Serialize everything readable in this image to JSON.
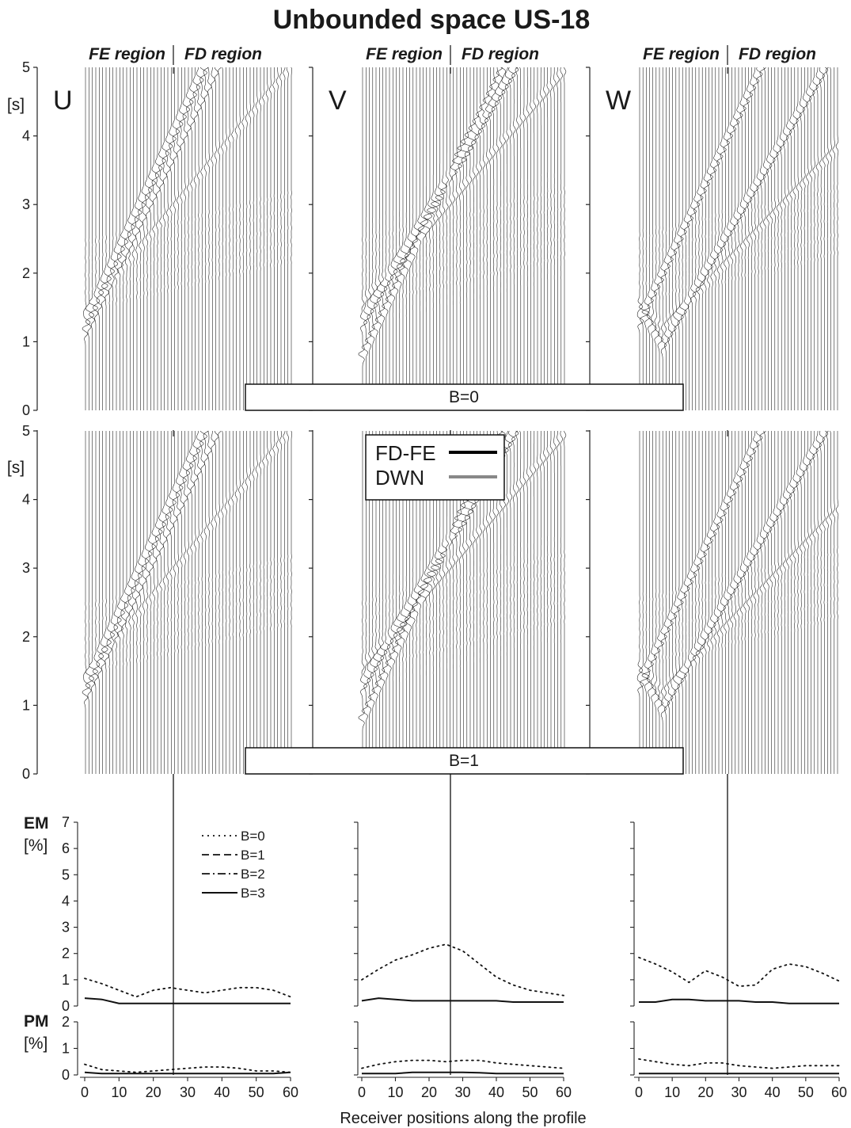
{
  "chart_data": {
    "type": "line",
    "title": "Unbounded space  US-18",
    "region_labels": {
      "fe": "FE region",
      "fd": "FD region"
    },
    "components": [
      "U",
      "V",
      "W"
    ],
    "seismogram_rows": [
      {
        "label": "B=0",
        "yunit": "[s]",
        "yticks": [
          "0",
          "1",
          "2",
          "3",
          "4",
          "5"
        ],
        "ylim": [
          0,
          5
        ]
      },
      {
        "label": "B=1",
        "yunit": "[s]",
        "yticks": [
          "0",
          "1",
          "2",
          "3",
          "4",
          "5"
        ],
        "ylim": [
          0,
          5
        ]
      }
    ],
    "seismogram_legend": [
      {
        "name": "FD-FE",
        "color": "#000000"
      },
      {
        "name": "DWN",
        "color": "#888888"
      }
    ],
    "receiver_count": 61,
    "fe_fd_boundary_receiver": 27,
    "misfit_legend": [
      {
        "name": "B=0",
        "dash": "dotted"
      },
      {
        "name": "B=1",
        "dash": "dashed"
      },
      {
        "name": "B=2",
        "dash": "dashdot"
      },
      {
        "name": "B=3",
        "dash": "solid"
      }
    ],
    "em": {
      "label": "EM",
      "unit": "[%]",
      "ylim": [
        0,
        7
      ],
      "yticks": [
        "0",
        "1",
        "2",
        "3",
        "4",
        "5",
        "6",
        "7"
      ],
      "x": [
        0,
        5,
        10,
        15,
        20,
        25,
        30,
        35,
        40,
        45,
        50,
        55,
        60
      ],
      "series": [
        {
          "name": "B=0",
          "dash": "dotted",
          "component": "U",
          "values": [
            1.05,
            0.85,
            0.6,
            0.35,
            0.6,
            0.7,
            0.6,
            0.5,
            0.6,
            0.7,
            0.7,
            0.6,
            0.35
          ]
        },
        {
          "name": "B=3",
          "dash": "solid",
          "component": "U",
          "values": [
            0.3,
            0.25,
            0.1,
            0.1,
            0.1,
            0.1,
            0.1,
            0.1,
            0.1,
            0.1,
            0.1,
            0.1,
            0.1
          ]
        },
        {
          "name": "B=0",
          "dash": "dotted",
          "component": "V",
          "values": [
            1.0,
            1.4,
            1.75,
            1.95,
            2.2,
            2.35,
            2.1,
            1.6,
            1.1,
            0.8,
            0.6,
            0.5,
            0.4
          ]
        },
        {
          "name": "B=3",
          "dash": "solid",
          "component": "V",
          "values": [
            0.2,
            0.3,
            0.25,
            0.2,
            0.2,
            0.2,
            0.2,
            0.2,
            0.2,
            0.15,
            0.15,
            0.15,
            0.15
          ]
        },
        {
          "name": "B=0",
          "dash": "dotted",
          "component": "W",
          "values": [
            1.85,
            1.6,
            1.3,
            0.9,
            1.35,
            1.1,
            0.75,
            0.8,
            1.4,
            1.6,
            1.5,
            1.25,
            0.95
          ]
        },
        {
          "name": "B=3",
          "dash": "solid",
          "component": "W",
          "values": [
            0.15,
            0.15,
            0.25,
            0.25,
            0.2,
            0.2,
            0.2,
            0.15,
            0.15,
            0.1,
            0.1,
            0.1,
            0.1
          ]
        }
      ]
    },
    "pm": {
      "label": "PM",
      "unit": "[%]",
      "ylim": [
        0,
        2
      ],
      "yticks": [
        "0",
        "1",
        "2"
      ],
      "x": [
        0,
        5,
        10,
        15,
        20,
        25,
        30,
        35,
        40,
        45,
        50,
        55,
        60
      ],
      "series": [
        {
          "name": "B=0",
          "dash": "dotted",
          "component": "U",
          "values": [
            0.4,
            0.2,
            0.15,
            0.1,
            0.15,
            0.2,
            0.25,
            0.3,
            0.3,
            0.25,
            0.15,
            0.15,
            0.1
          ]
        },
        {
          "name": "B=3",
          "dash": "solid",
          "component": "U",
          "values": [
            0.1,
            0.05,
            0.05,
            0.05,
            0.05,
            0.05,
            0.05,
            0.05,
            0.05,
            0.05,
            0.05,
            0.05,
            0.1
          ]
        },
        {
          "name": "B=0",
          "dash": "dotted",
          "component": "V",
          "values": [
            0.25,
            0.4,
            0.5,
            0.55,
            0.55,
            0.5,
            0.55,
            0.55,
            0.45,
            0.4,
            0.35,
            0.3,
            0.25
          ]
        },
        {
          "name": "B=3",
          "dash": "solid",
          "component": "V",
          "values": [
            0.05,
            0.05,
            0.05,
            0.1,
            0.1,
            0.1,
            0.1,
            0.08,
            0.05,
            0.05,
            0.05,
            0.05,
            0.05
          ]
        },
        {
          "name": "B=0",
          "dash": "dotted",
          "component": "W",
          "values": [
            0.6,
            0.5,
            0.4,
            0.35,
            0.45,
            0.45,
            0.35,
            0.3,
            0.25,
            0.3,
            0.35,
            0.35,
            0.35
          ]
        },
        {
          "name": "B=3",
          "dash": "solid",
          "component": "W",
          "values": [
            0.05,
            0.05,
            0.05,
            0.05,
            0.05,
            0.05,
            0.05,
            0.05,
            0.05,
            0.05,
            0.05,
            0.05,
            0.05
          ]
        }
      ]
    },
    "xticks": [
      "0",
      "10",
      "20",
      "30",
      "40",
      "50",
      "60"
    ],
    "xlim": [
      0,
      60
    ],
    "xlabel": "Receiver positions along the profile"
  }
}
